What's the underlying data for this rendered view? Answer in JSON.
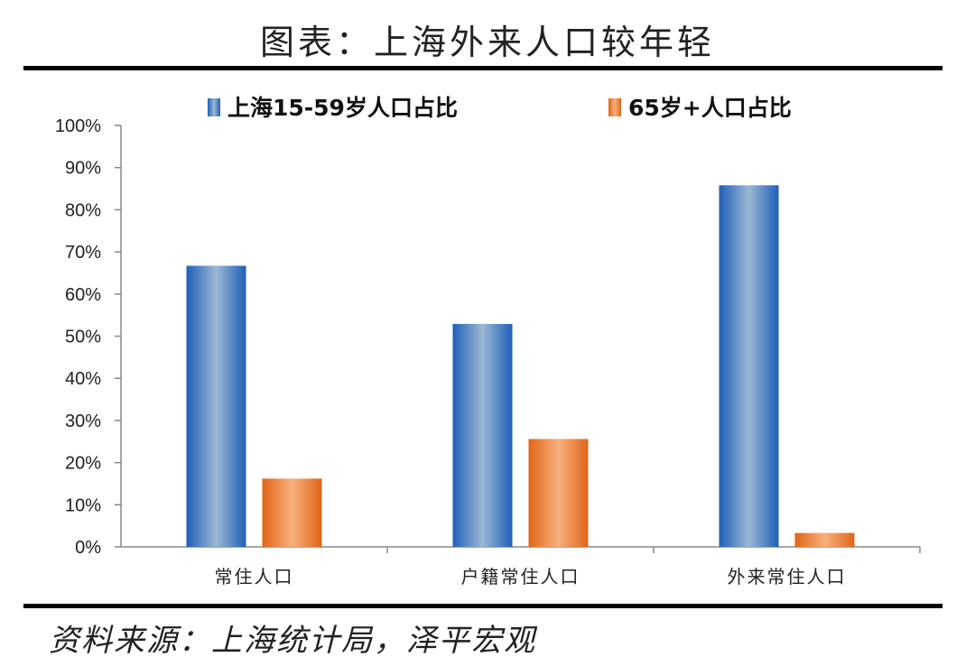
{
  "title": "图表：上海外来人口较年轻",
  "source": "资料来源：上海统计局，泽平宏观",
  "colors": {
    "series_blue_dark": "#1f5fb8",
    "series_blue_light": "#9bb8d3",
    "series_orange_dark": "#e06518",
    "series_orange_light": "#f8b07c",
    "axis": "#888888",
    "rule": "#000000"
  },
  "chart_data": {
    "type": "bar",
    "title": "",
    "xlabel": "",
    "ylabel": "",
    "categories": [
      "常住人口",
      "户籍常住人口",
      "外来常住人口"
    ],
    "series": [
      {
        "name": "上海15-59岁人口占比",
        "values": [
          66.7,
          52.9,
          85.8
        ]
      },
      {
        "name": "65岁+人口占比",
        "values": [
          16.2,
          25.6,
          3.3
        ]
      }
    ],
    "ylim": [
      0,
      100
    ],
    "yticks": [
      "0%",
      "10%",
      "20%",
      "30%",
      "40%",
      "50%",
      "60%",
      "70%",
      "80%",
      "90%",
      "100%"
    ],
    "grid": false,
    "legend_position": "top"
  }
}
